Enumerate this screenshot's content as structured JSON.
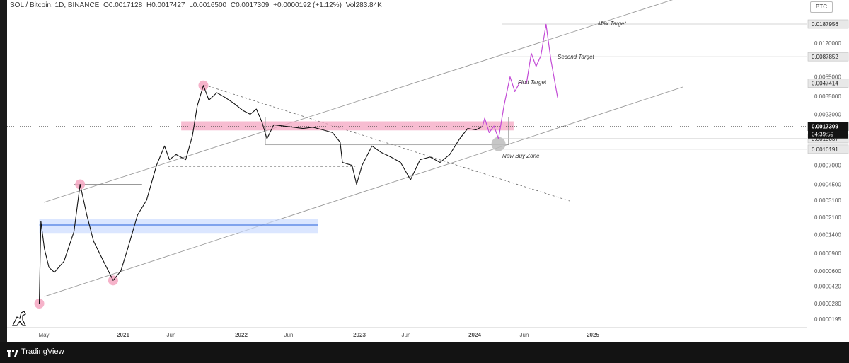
{
  "legend": {
    "symbol": "SOL / Bitcoin, 1D, BINANCE",
    "open": "O0.0017128",
    "high": "H0.0017427",
    "low": "L0.0016500",
    "close": "C0.0017309",
    "change": "+0.0000192 (+1.12%)",
    "volume": "Vol283.84K"
  },
  "currency": "BTC",
  "footer": {
    "brand": "TradingView"
  },
  "countdown": "04:39:59",
  "annotations": {
    "max_target": "Max Target",
    "second_target": "Second Target",
    "first_target": "First Target",
    "new_buy_zone": "New Buy Zone"
  },
  "chart_data": {
    "type": "line",
    "scale": "log",
    "title": "",
    "xlabel": "",
    "ylabel": "",
    "x_ticks": [
      "May",
      "2021",
      "Jun",
      "2022",
      "Jun",
      "2023",
      "Jun",
      "2024",
      "Jun",
      "2025"
    ],
    "y_ticks": [
      "0.0120000",
      "0.0055000",
      "0.0035000",
      "0.0023000",
      "0.0007000",
      "0.0004500",
      "0.0003100",
      "0.0002100",
      "0.0001400",
      "0.0000900",
      "0.0000600",
      "0.0000420",
      "0.0000280",
      "0.0000195"
    ],
    "price_markers": [
      {
        "value": "0.0187956",
        "style": "level"
      },
      {
        "value": "0.0087852",
        "style": "level"
      },
      {
        "value": "0.0047414",
        "style": "level"
      },
      {
        "value": "0.0017309",
        "style": "current"
      },
      {
        "value": "0.0013037",
        "style": "level"
      },
      {
        "value": "0.0010191",
        "style": "level"
      }
    ],
    "series": [
      {
        "style": "price",
        "points": [
          [
            "2020-04-15",
            2.8e-05
          ],
          [
            "2020-04-20",
            0.00019
          ],
          [
            "2020-05-01",
            0.0001
          ],
          [
            "2020-05-15",
            6.5e-05
          ],
          [
            "2020-06-01",
            5.8e-05
          ],
          [
            "2020-07-01",
            7.5e-05
          ],
          [
            "2020-08-01",
            0.00015
          ],
          [
            "2020-08-20",
            0.00045
          ],
          [
            "2020-09-10",
            0.00022
          ],
          [
            "2020-10-01",
            0.00012
          ],
          [
            "2020-11-01",
            7.5e-05
          ],
          [
            "2020-12-01",
            4.8e-05
          ],
          [
            "2020-12-25",
            6e-05
          ],
          [
            "2021-01-15",
            0.0001
          ],
          [
            "2021-02-15",
            0.00022
          ],
          [
            "2021-03-15",
            0.00031
          ],
          [
            "2021-04-15",
            0.0007
          ],
          [
            "2021-05-10",
            0.0011
          ],
          [
            "2021-05-25",
            0.0008
          ],
          [
            "2021-06-15",
            0.0009
          ],
          [
            "2021-07-15",
            0.0008
          ],
          [
            "2021-08-05",
            0.0014
          ],
          [
            "2021-08-20",
            0.0028
          ],
          [
            "2021-09-08",
            0.0045
          ],
          [
            "2021-09-25",
            0.0032
          ],
          [
            "2021-10-20",
            0.0038
          ],
          [
            "2021-11-15",
            0.0034
          ],
          [
            "2021-12-10",
            0.003
          ],
          [
            "2022-01-10",
            0.0025
          ],
          [
            "2022-02-01",
            0.0023
          ],
          [
            "2022-02-20",
            0.0026
          ],
          [
            "2022-03-10",
            0.0019
          ],
          [
            "2022-03-25",
            0.0013
          ],
          [
            "2022-04-15",
            0.0018
          ],
          [
            "2022-05-15",
            0.00175
          ],
          [
            "2022-06-15",
            0.0017
          ],
          [
            "2022-07-15",
            0.00165
          ],
          [
            "2022-08-15",
            0.0017
          ],
          [
            "2022-09-15",
            0.0016
          ],
          [
            "2022-10-15",
            0.0015
          ],
          [
            "2022-11-08",
            0.0012
          ],
          [
            "2022-11-15",
            0.00075
          ],
          [
            "2022-12-15",
            0.0007
          ],
          [
            "2022-12-29",
            0.00045
          ],
          [
            "2023-01-15",
            0.0007
          ],
          [
            "2023-02-15",
            0.0011
          ],
          [
            "2023-03-15",
            0.00095
          ],
          [
            "2023-04-15",
            0.00085
          ],
          [
            "2023-05-15",
            0.00075
          ],
          [
            "2023-06-15",
            0.0005
          ],
          [
            "2023-07-15",
            0.0008
          ],
          [
            "2023-08-15",
            0.00085
          ],
          [
            "2023-09-15",
            0.00075
          ],
          [
            "2023-10-15",
            0.0009
          ],
          [
            "2023-11-15",
            0.0013
          ],
          [
            "2023-12-10",
            0.00165
          ],
          [
            "2024-01-05",
            0.0016
          ],
          [
            "2024-01-25",
            0.00173
          ]
        ]
      },
      {
        "style": "projection",
        "points": [
          [
            "2024-01-25",
            0.00173
          ],
          [
            "2024-02-01",
            0.0021
          ],
          [
            "2024-02-15",
            0.0015
          ],
          [
            "2024-03-01",
            0.00175
          ],
          [
            "2024-03-15",
            0.0013
          ],
          [
            "2024-04-01",
            0.0028
          ],
          [
            "2024-04-20",
            0.0055
          ],
          [
            "2024-05-05",
            0.0039
          ],
          [
            "2024-05-20",
            0.0048
          ],
          [
            "2024-06-10",
            0.0047
          ],
          [
            "2024-06-25",
            0.0095
          ],
          [
            "2024-07-10",
            0.007
          ],
          [
            "2024-07-25",
            0.009
          ],
          [
            "2024-08-10",
            0.0187
          ],
          [
            "2024-08-25",
            0.0082
          ],
          [
            "2024-09-15",
            0.0034
          ]
        ]
      }
    ],
    "zones": [
      {
        "label": "",
        "low": 0.00158,
        "high": 0.00195,
        "from": "2021-07-01",
        "to": "2024-05-01",
        "color": "#f4a6c1"
      },
      {
        "label": "",
        "low": 0.000145,
        "high": 0.0002,
        "from": "2020-04-15",
        "to": "2022-09-01",
        "color": "#c8d8ff"
      }
    ],
    "highlighted_points": [
      [
        "2020-04-15",
        2.8e-05
      ],
      [
        "2020-08-20",
        0.00045
      ],
      [
        "2020-12-01",
        4.8e-05
      ],
      [
        "2021-09-08",
        0.0045
      ]
    ],
    "buy_zone_point": [
      "2024-03-15",
      0.00115
    ],
    "grid": false
  }
}
